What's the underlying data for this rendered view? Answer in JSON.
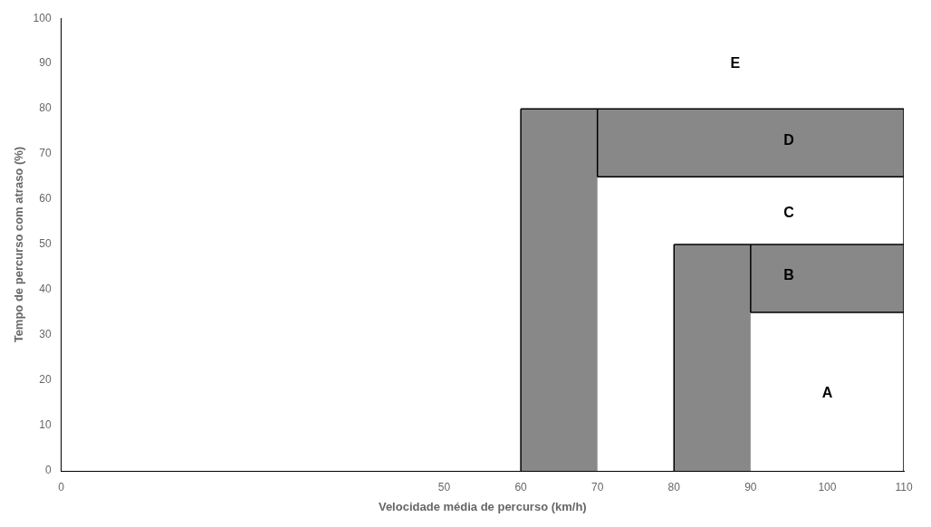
{
  "chart_data": {
    "type": "region",
    "xlabel": "Velocidade média de percurso (km/h)",
    "ylabel": "Tempo de percurso com atraso (%)",
    "xlim": [
      0,
      110
    ],
    "ylim": [
      0,
      100
    ],
    "xticks": [
      0,
      50,
      60,
      70,
      80,
      90,
      100,
      110
    ],
    "yticks": [
      0,
      10,
      20,
      30,
      40,
      50,
      60,
      70,
      80,
      90,
      100
    ],
    "grid": false,
    "rectangles": [
      {
        "x": 60,
        "y": 0,
        "w": 10,
        "h": 80,
        "color": "#888888"
      },
      {
        "x": 70,
        "y": 65,
        "w": 40,
        "h": 15,
        "color": "#888888"
      },
      {
        "x": 80,
        "y": 0,
        "w": 10,
        "h": 50,
        "color": "#888888"
      },
      {
        "x": 90,
        "y": 35,
        "w": 20,
        "h": 15,
        "color": "#888888"
      }
    ],
    "lines": [
      {
        "x": [
          60,
          60
        ],
        "y": [
          0,
          80
        ],
        "color": "#000000"
      },
      {
        "x": [
          60,
          110
        ],
        "y": [
          80,
          80
        ],
        "color": "#000000"
      },
      {
        "x": [
          70,
          70
        ],
        "y": [
          65,
          80
        ],
        "color": "#000000"
      },
      {
        "x": [
          70,
          110
        ],
        "y": [
          65,
          65
        ],
        "color": "#000000"
      },
      {
        "x": [
          110,
          110
        ],
        "y": [
          0,
          80
        ],
        "color": "#000000"
      },
      {
        "x": [
          80,
          80
        ],
        "y": [
          0,
          50
        ],
        "color": "#000000"
      },
      {
        "x": [
          80,
          110
        ],
        "y": [
          50,
          50
        ],
        "color": "#000000"
      },
      {
        "x": [
          90,
          90
        ],
        "y": [
          35,
          50
        ],
        "color": "#000000"
      },
      {
        "x": [
          90,
          110
        ],
        "y": [
          35,
          35
        ],
        "color": "#000000"
      }
    ],
    "annotations": [
      {
        "text": "E",
        "x": 88,
        "y": 90
      },
      {
        "text": "D",
        "x": 95,
        "y": 73
      },
      {
        "text": "C",
        "x": 95,
        "y": 57
      },
      {
        "text": "B",
        "x": 95,
        "y": 43
      },
      {
        "text": "A",
        "x": 100,
        "y": 17
      }
    ]
  }
}
